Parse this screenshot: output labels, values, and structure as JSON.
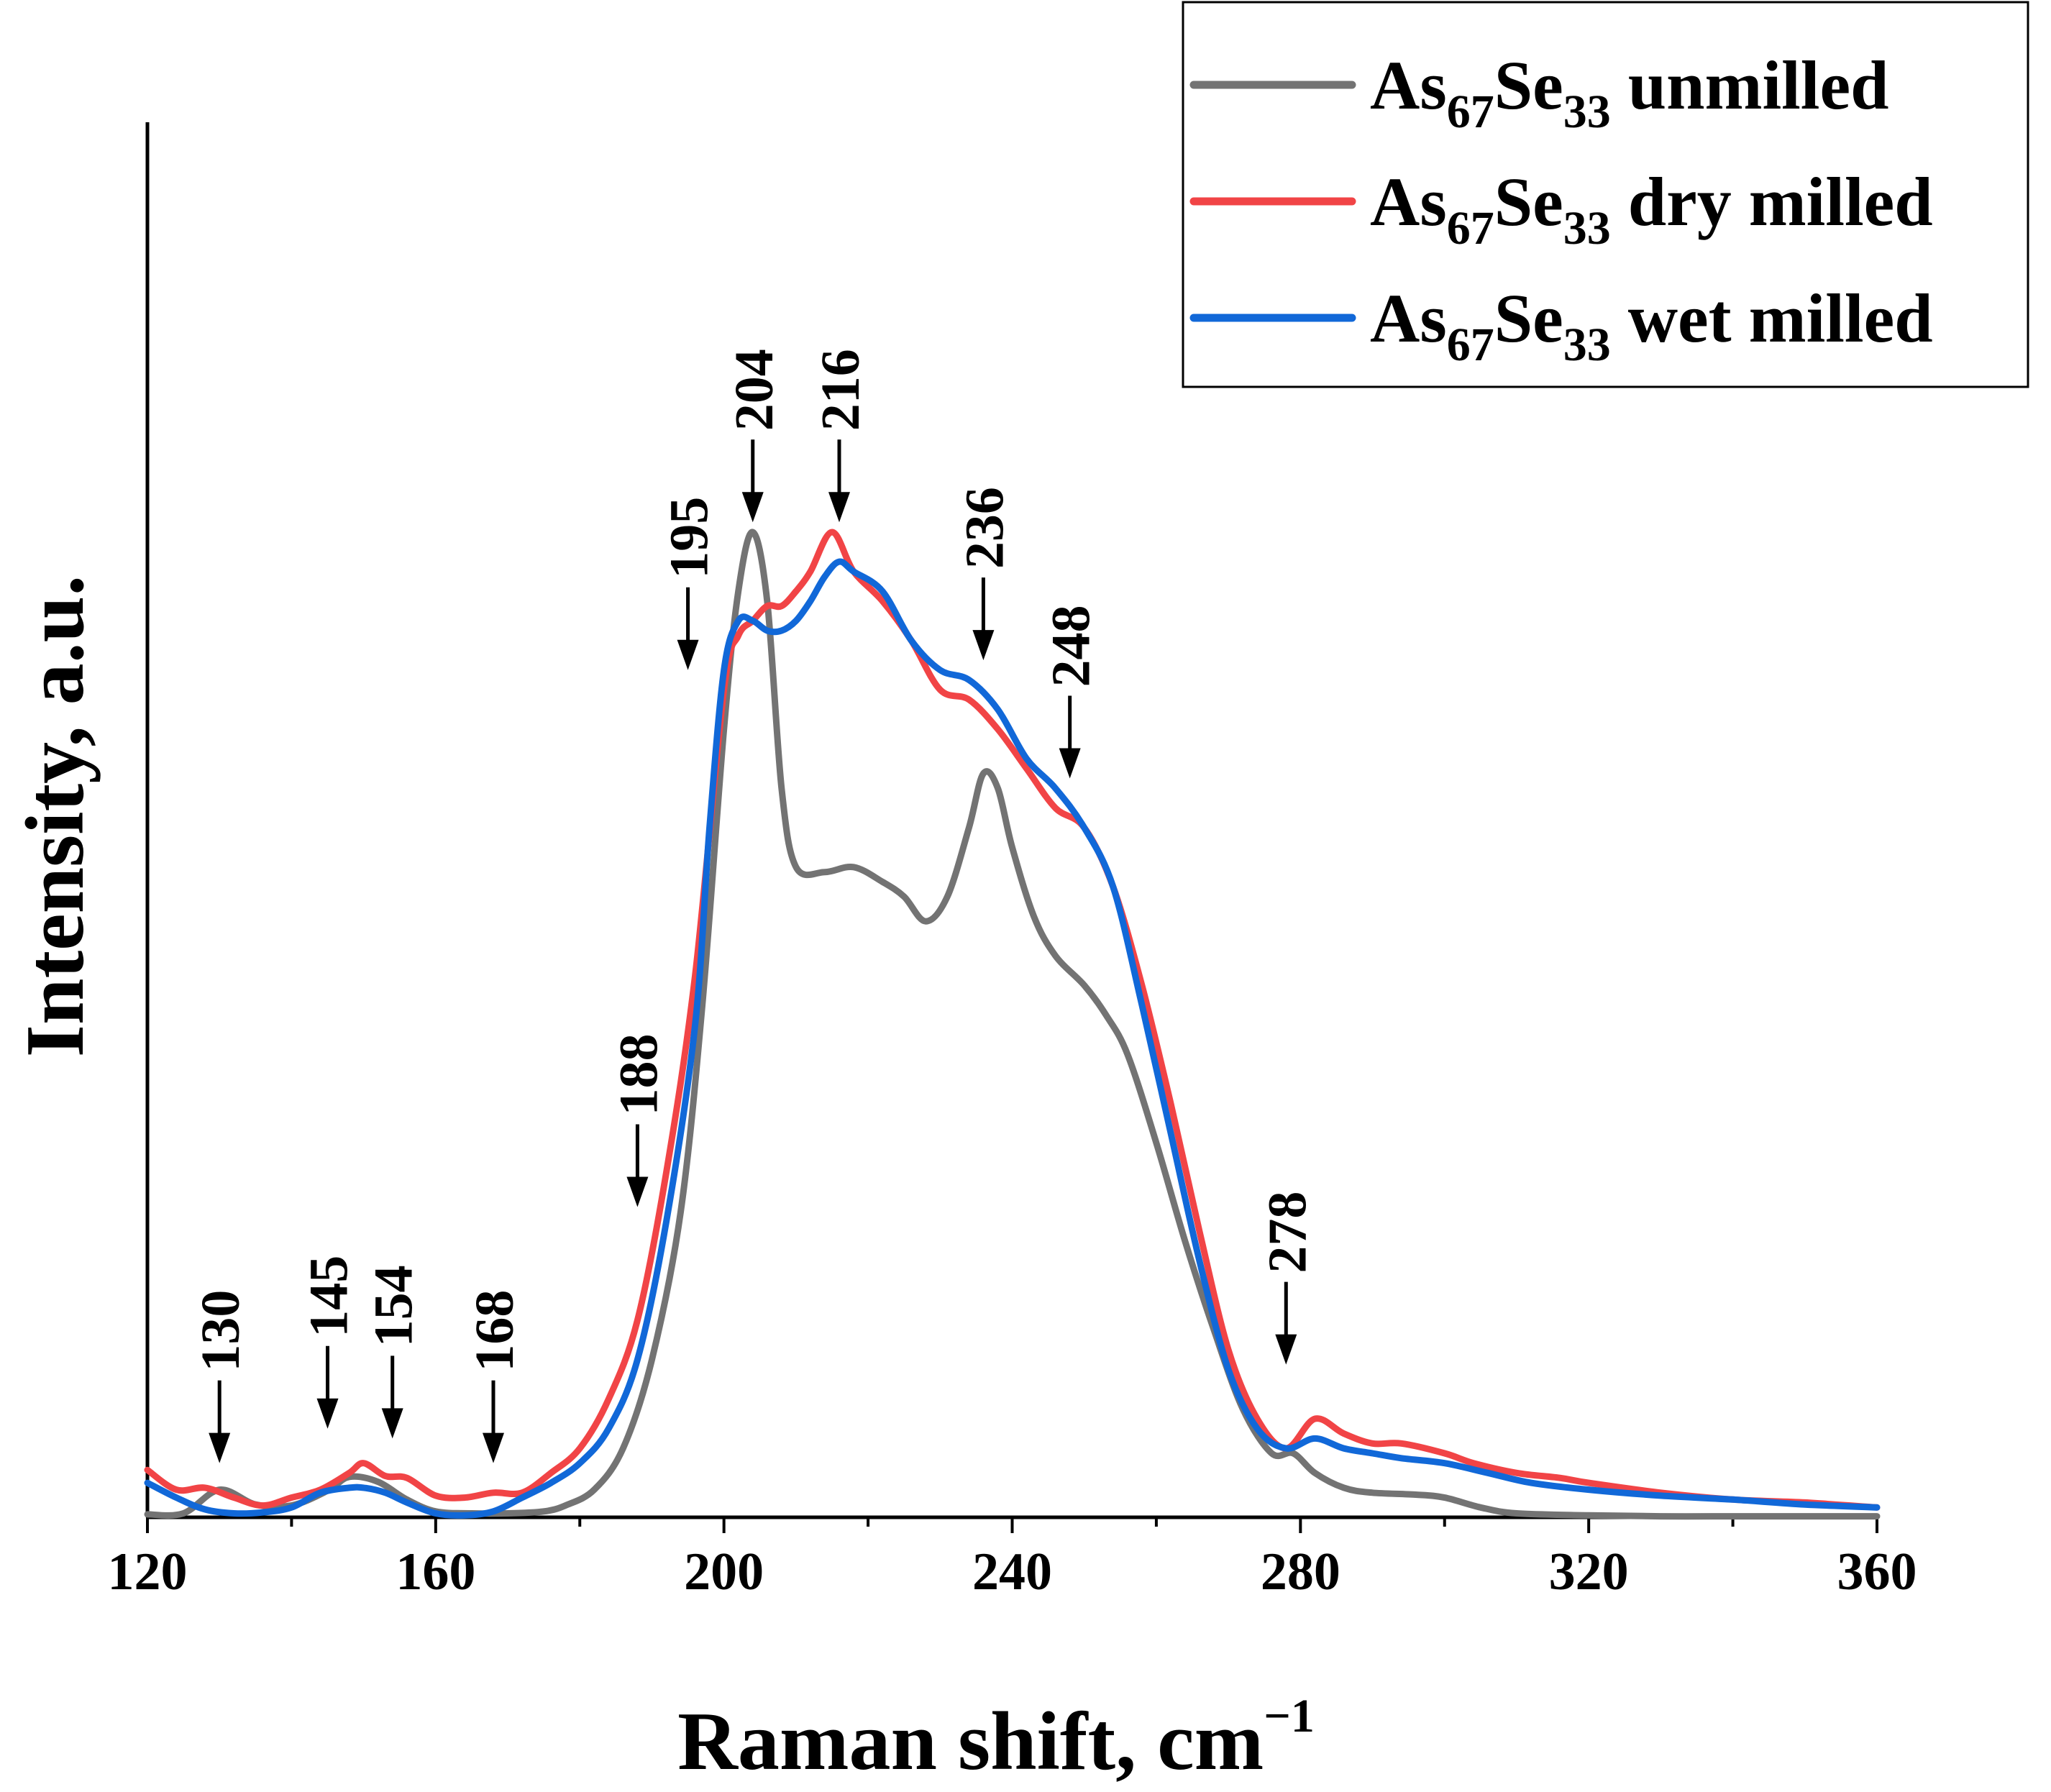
{
  "chart_data": {
    "type": "line",
    "xlabel": "Raman shift, cm",
    "xlabel_sup": "−1",
    "ylabel": "Intensity, a.u.",
    "xlim": [
      120,
      360
    ],
    "ylim": [
      0,
      1.0
    ],
    "xticks": [
      120,
      160,
      200,
      240,
      280,
      320,
      360
    ],
    "xtick_labels": [
      "120",
      "160",
      "200",
      "240",
      "280",
      "320",
      "360"
    ],
    "y_ticks_shown": false,
    "legend_position": "top-right",
    "series": [
      {
        "name": "As67Se33 unmilled",
        "legend": {
          "base": "As",
          "sub1": "67",
          "mid": "Se",
          "sub2": "33",
          "suffix": " unmilled"
        },
        "color": "#737373",
        "x": [
          120,
          125,
          130,
          135,
          140,
          145,
          148,
          152,
          156,
          160,
          165,
          170,
          175,
          178,
          182,
          186,
          190,
          194,
          197,
          200,
          202,
          204,
          206,
          208,
          210,
          214,
          218,
          222,
          225,
          228,
          231,
          234,
          236,
          238,
          240,
          243,
          246,
          250,
          253,
          256,
          260,
          264,
          268,
          272,
          276,
          279,
          282,
          286,
          290,
          296,
          300,
          305,
          310,
          320,
          330,
          340,
          350,
          360
        ],
        "y": [
          0.003,
          0.004,
          0.028,
          0.013,
          0.012,
          0.027,
          0.041,
          0.036,
          0.018,
          0.006,
          0.004,
          0.004,
          0.006,
          0.012,
          0.028,
          0.07,
          0.16,
          0.31,
          0.52,
          0.8,
          0.94,
          1.0,
          0.93,
          0.74,
          0.66,
          0.655,
          0.66,
          0.645,
          0.63,
          0.605,
          0.63,
          0.7,
          0.755,
          0.74,
          0.68,
          0.61,
          0.57,
          0.54,
          0.51,
          0.47,
          0.38,
          0.28,
          0.19,
          0.11,
          0.065,
          0.065,
          0.045,
          0.03,
          0.025,
          0.023,
          0.02,
          0.01,
          0.004,
          0.002,
          0.001,
          0.001,
          0.001,
          0.001
        ]
      },
      {
        "name": "As67Se33 dry milled",
        "legend": {
          "base": "As",
          "sub1": "67",
          "mid": "Se",
          "sub2": "33",
          "suffix": " dry milled"
        },
        "color": "#f14446",
        "x": [
          120,
          124,
          128,
          132,
          136,
          140,
          144,
          148,
          150,
          153,
          156,
          160,
          164,
          168,
          172,
          176,
          180,
          184,
          188,
          192,
          196,
          200,
          202,
          204,
          206,
          208,
          210,
          212,
          215,
          218,
          222,
          226,
          230,
          234,
          238,
          242,
          246,
          250,
          254,
          258,
          262,
          266,
          270,
          274,
          278,
          282,
          286,
          290,
          294,
          300,
          304,
          310,
          316,
          320,
          330,
          340,
          350,
          360
        ],
        "y": [
          0.048,
          0.028,
          0.03,
          0.02,
          0.012,
          0.02,
          0.028,
          0.045,
          0.055,
          0.042,
          0.04,
          0.022,
          0.02,
          0.025,
          0.025,
          0.045,
          0.07,
          0.12,
          0.2,
          0.35,
          0.55,
          0.84,
          0.895,
          0.91,
          0.925,
          0.925,
          0.94,
          0.96,
          1.0,
          0.96,
          0.93,
          0.89,
          0.84,
          0.83,
          0.8,
          0.76,
          0.72,
          0.7,
          0.64,
          0.54,
          0.42,
          0.29,
          0.17,
          0.1,
          0.07,
          0.1,
          0.085,
          0.075,
          0.075,
          0.065,
          0.055,
          0.045,
          0.04,
          0.035,
          0.025,
          0.018,
          0.015,
          0.01
        ]
      },
      {
        "name": "As67Se33 wet milled",
        "legend": {
          "base": "As",
          "sub1": "67",
          "mid": "Se",
          "sub2": "33",
          "suffix": " wet milled"
        },
        "color": "#1168d8",
        "x": [
          120,
          124,
          128,
          132,
          136,
          140,
          144,
          148,
          150,
          153,
          156,
          160,
          164,
          168,
          172,
          176,
          180,
          184,
          188,
          192,
          196,
          198,
          200,
          202,
          204,
          206,
          208,
          210,
          212,
          214,
          216,
          218,
          222,
          226,
          230,
          234,
          238,
          242,
          246,
          250,
          254,
          258,
          262,
          266,
          270,
          274,
          278,
          282,
          286,
          290,
          294,
          300,
          306,
          312,
          320,
          330,
          340,
          350,
          360
        ],
        "y": [
          0.035,
          0.02,
          0.008,
          0.004,
          0.005,
          0.01,
          0.025,
          0.03,
          0.03,
          0.025,
          0.015,
          0.004,
          0.002,
          0.006,
          0.02,
          0.035,
          0.055,
          0.09,
          0.16,
          0.3,
          0.5,
          0.7,
          0.86,
          0.91,
          0.91,
          0.9,
          0.9,
          0.91,
          0.93,
          0.955,
          0.97,
          0.96,
          0.94,
          0.89,
          0.86,
          0.85,
          0.82,
          0.77,
          0.74,
          0.7,
          0.64,
          0.52,
          0.39,
          0.26,
          0.15,
          0.09,
          0.07,
          0.08,
          0.07,
          0.065,
          0.06,
          0.055,
          0.045,
          0.035,
          0.028,
          0.022,
          0.018,
          0.013,
          0.01
        ]
      }
    ],
    "annotations": [
      {
        "label": "130",
        "x": 130,
        "y": 0.055
      },
      {
        "label": "145",
        "x": 145,
        "y": 0.09
      },
      {
        "label": "154",
        "x": 154,
        "y": 0.08
      },
      {
        "label": "168",
        "x": 168,
        "y": 0.055
      },
      {
        "label": "188",
        "x": 188,
        "y": 0.315
      },
      {
        "label": "195",
        "x": 195,
        "y": 0.86
      },
      {
        "label": "204",
        "x": 204,
        "y": 1.01
      },
      {
        "label": "216",
        "x": 216,
        "y": 1.01
      },
      {
        "label": "236",
        "x": 236,
        "y": 0.87
      },
      {
        "label": "248",
        "x": 248,
        "y": 0.75
      },
      {
        "label": "278",
        "x": 278,
        "y": 0.155
      }
    ]
  }
}
